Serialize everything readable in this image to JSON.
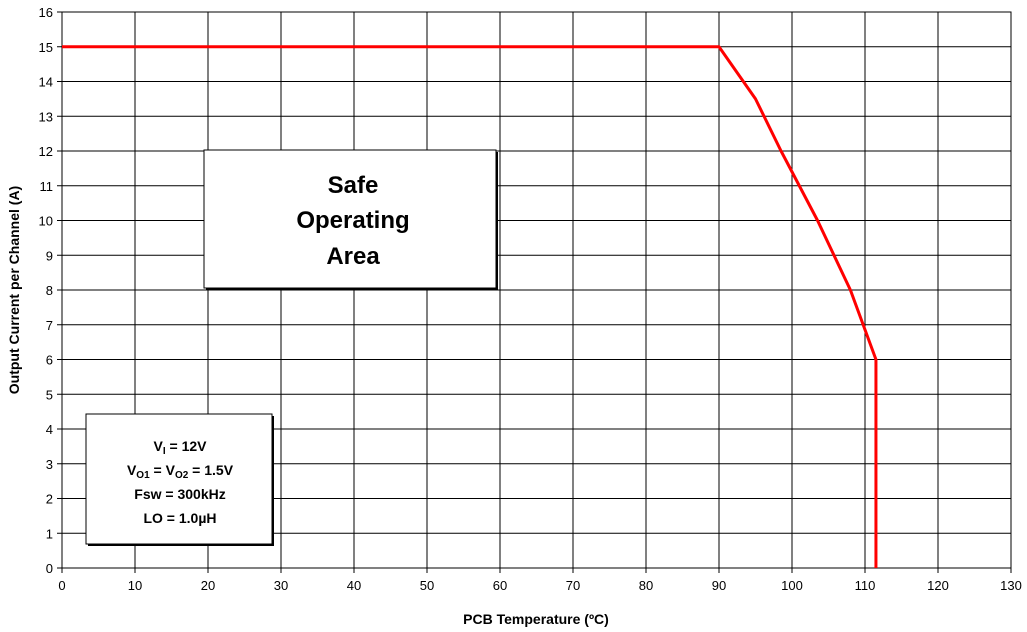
{
  "chart_data": {
    "type": "line",
    "title": "",
    "xlabel": "PCB Temperature (ºC)",
    "ylabel": "Output Current per Channel (A)",
    "xlim": [
      0,
      130
    ],
    "ylim": [
      0,
      16
    ],
    "x_ticks": [
      "0",
      "10",
      "20",
      "30",
      "40",
      "50",
      "60",
      "70",
      "80",
      "90",
      "100",
      "110",
      "120",
      "130"
    ],
    "y_ticks": [
      "0",
      "1",
      "2",
      "3",
      "4",
      "5",
      "6",
      "7",
      "8",
      "9",
      "10",
      "11",
      "12",
      "13",
      "14",
      "15",
      "16"
    ],
    "grid": true,
    "series": [
      {
        "color": "#ff0000",
        "points": [
          {
            "x": 0,
            "y": 15
          },
          {
            "x": 90,
            "y": 15
          },
          {
            "x": 95,
            "y": 13.5
          },
          {
            "x": 98.5,
            "y": 12
          },
          {
            "x": 103.5,
            "y": 10
          },
          {
            "x": 108,
            "y": 8
          },
          {
            "x": 111.5,
            "y": 6
          },
          {
            "x": 111.5,
            "y": 0
          }
        ]
      }
    ],
    "annotations": {
      "safe_area": [
        "Safe",
        "Operating",
        "Area"
      ],
      "conditions": [
        {
          "main": "V",
          "sub": "I",
          "rest": " = 12V"
        },
        {
          "main": "V",
          "sub": "O1",
          "rest": " = V",
          "sub2": "O2",
          "rest2": " = 1.5V"
        },
        {
          "main": "Fsw = 300kHz"
        },
        {
          "main": "LO = 1.0µH"
        }
      ]
    }
  }
}
